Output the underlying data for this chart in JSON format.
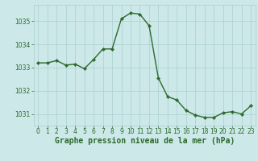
{
  "x": [
    0,
    1,
    2,
    3,
    4,
    5,
    6,
    7,
    8,
    9,
    10,
    11,
    12,
    13,
    14,
    15,
    16,
    17,
    18,
    19,
    20,
    21,
    22,
    23
  ],
  "y": [
    1033.2,
    1033.2,
    1033.3,
    1033.1,
    1033.15,
    1032.95,
    1033.35,
    1033.8,
    1033.8,
    1035.1,
    1035.35,
    1035.3,
    1034.8,
    1032.55,
    1031.75,
    1031.6,
    1031.15,
    1030.95,
    1030.85,
    1030.85,
    1031.05,
    1031.1,
    1031.0,
    1031.35
  ],
  "line_color": "#2d6a2d",
  "marker": "D",
  "marker_size": 2.2,
  "line_width": 1.0,
  "background_color": "#cce8e8",
  "grid_color": "#aacfcf",
  "xlabel": "Graphe pression niveau de la mer (hPa)",
  "xlabel_fontsize": 7,
  "tick_color": "#2d6a2d",
  "tick_fontsize": 5.5,
  "ylim": [
    1030.5,
    1035.7
  ],
  "yticks": [
    1031,
    1032,
    1033,
    1034,
    1035
  ],
  "xlim": [
    -0.5,
    23.5
  ],
  "xticks": [
    0,
    1,
    2,
    3,
    4,
    5,
    6,
    7,
    8,
    9,
    10,
    11,
    12,
    13,
    14,
    15,
    16,
    17,
    18,
    19,
    20,
    21,
    22,
    23
  ]
}
